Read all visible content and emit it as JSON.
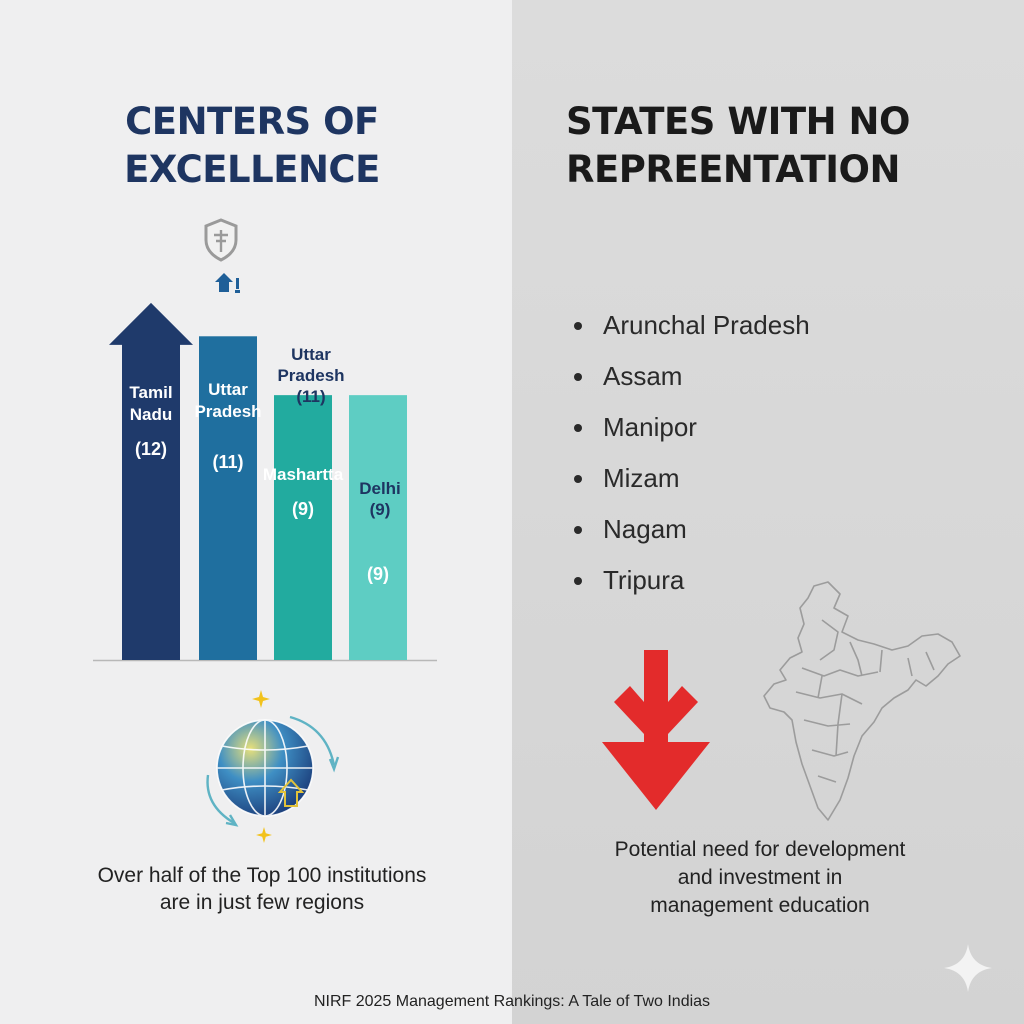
{
  "left_panel": {
    "title_line1": "CENTERS OF",
    "title_line2": "EXCELLENCE",
    "caption_line1": "Over half of the Top 100 institutions",
    "caption_line2": "are in just few regions",
    "icons": [
      "shield-emblem-icon",
      "up-arrow-house-icon",
      "globe-icon",
      "sparkle-icon",
      "circular-arrows-icon"
    ]
  },
  "right_panel": {
    "title_line1": "STATES WITH NO",
    "title_line2": "REPREENTATION",
    "states": [
      "Arunchal Pradesh",
      "Assam",
      "Manipor",
      "Mizam",
      "Nagam",
      "Tripura"
    ],
    "caption_line1": "Potential need for development",
    "caption_line2": "and investment in",
    "caption_line3": "management education",
    "icons": [
      "down-arrow-icon",
      "india-map-icon",
      "sparkle-icon"
    ]
  },
  "footer": "NIRF 2025 Management Rankings: A Tale of Two Indias",
  "colors": {
    "navy": "#1f3a6b",
    "blue": "#1f6f9f",
    "teal": "#22ab9f",
    "light_teal": "#5ecdc3",
    "red": "#e32b2b"
  },
  "chart_data": {
    "type": "bar",
    "title": "CENTERS OF EXCELLENCE",
    "categories": [
      "Tamil Nadu",
      "Uttar Pradesh",
      "Mashartta",
      "Delhi"
    ],
    "values": [
      12,
      11,
      9,
      9
    ],
    "bar_labels": [
      {
        "name": "Tamil\nNadu",
        "value": "(12)"
      },
      {
        "name": "Uttar\nPradesh",
        "value": "(11)"
      },
      {
        "name": "Mashartta",
        "value": "(9)"
      },
      {
        "name": "",
        "value": "(9)"
      }
    ],
    "above_labels": [
      {
        "bar": 2,
        "text": "Uttar\nPradesh\n(11)"
      },
      {
        "bar": 3,
        "text": "Delhi\n(9)"
      }
    ],
    "colors": [
      "#1f3a6b",
      "#1f6f9f",
      "#22ab9f",
      "#5ecdc3"
    ],
    "ylim": [
      0,
      14
    ],
    "first_bar_arrow": true,
    "grid": false,
    "legend": "none"
  }
}
